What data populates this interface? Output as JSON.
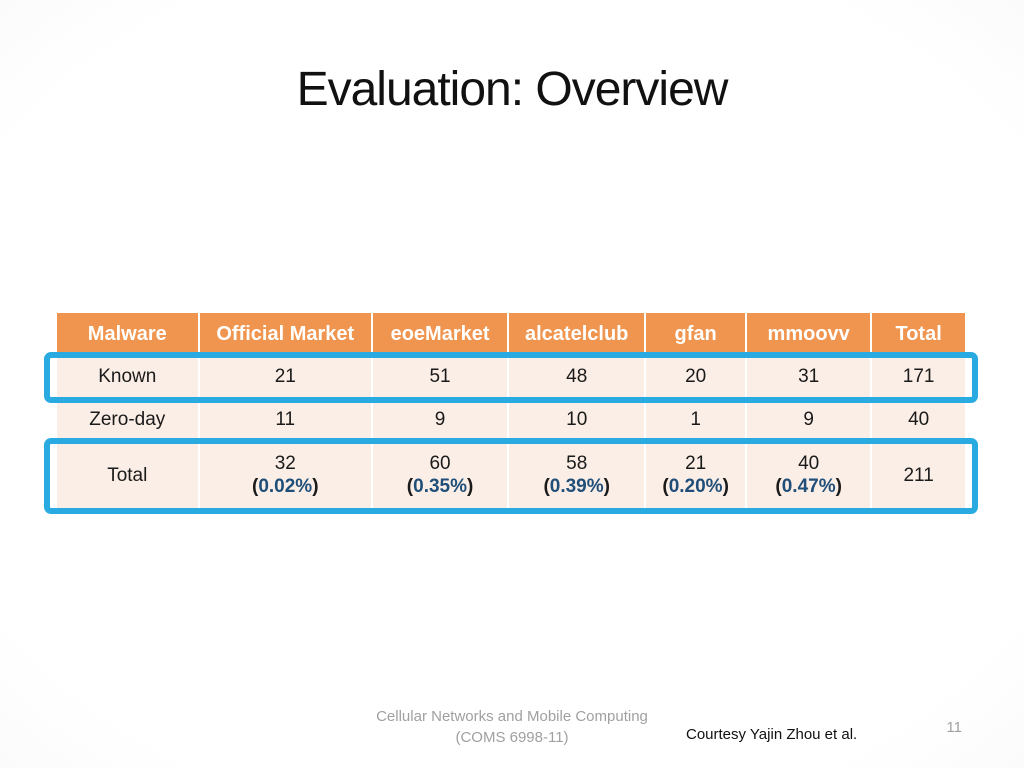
{
  "slide": {
    "title": "Evaluation: Overview",
    "page_number": "11"
  },
  "footer": {
    "course_line1": "Cellular Networks and Mobile Computing",
    "course_line2": "(COMS 6998-11)",
    "courtesy": "Courtesy Yajin Zhou et al."
  },
  "colors": {
    "header_bg": "#F0954F",
    "row_bg": "#FBEEE6",
    "highlight_border": "#29ABE2",
    "percent_text": "#1F4E79",
    "footer_gray": "#A0A0A0"
  },
  "table": {
    "headers": [
      "Malware",
      "Official Market",
      "eoeMarket",
      "alcatelclub",
      "gfan",
      "mmoovv",
      "Total"
    ],
    "punct": {
      "open": "(",
      "close": ")"
    },
    "rows": {
      "known": {
        "label": "Known",
        "values": [
          "21",
          "51",
          "48",
          "20",
          "31",
          "171"
        ]
      },
      "zero_day": {
        "label": "Zero-day",
        "values": [
          "11",
          "9",
          "10",
          "1",
          "9",
          "40"
        ]
      },
      "total": {
        "label": "Total",
        "cells": [
          {
            "value": "32",
            "percent": "0.02%"
          },
          {
            "value": "60",
            "percent": "0.35%"
          },
          {
            "value": "58",
            "percent": "0.39%"
          },
          {
            "value": "21",
            "percent": "0.20%"
          },
          {
            "value": "40",
            "percent": "0.47%"
          }
        ],
        "grand_total": "211"
      }
    }
  }
}
